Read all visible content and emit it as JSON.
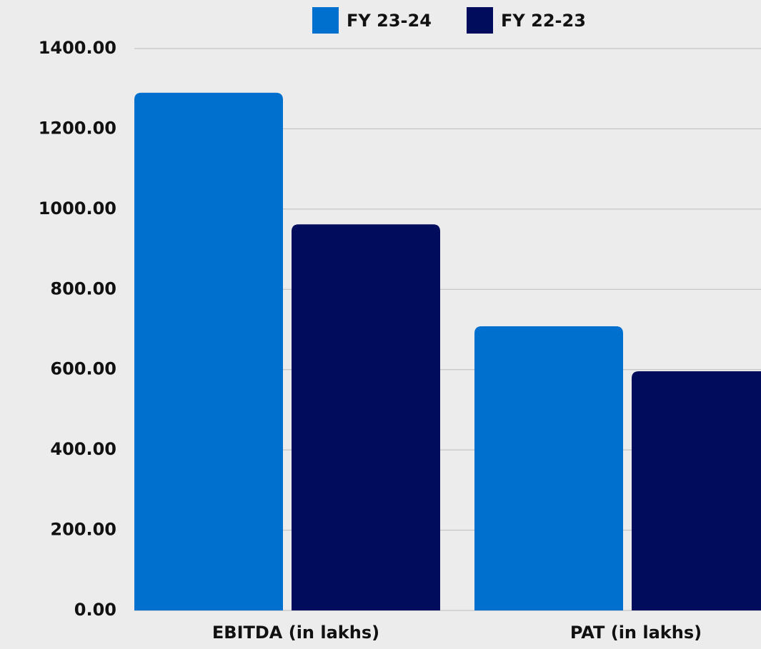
{
  "chart_data": {
    "type": "bar",
    "categories": [
      "EBITDA (in lakhs)",
      "PAT (in lakhs)"
    ],
    "series": [
      {
        "name": "FY 23-24",
        "color": "#0070cf",
        "values": [
          1290,
          708
        ]
      },
      {
        "name": "FY 22-23",
        "color": "#020c5c",
        "values": [
          962,
          596
        ]
      }
    ],
    "ylim": [
      0,
      1400
    ],
    "yticks": [
      {
        "value": 0,
        "label": "0.00"
      },
      {
        "value": 200,
        "label": "200.00"
      },
      {
        "value": 400,
        "label": "400.00"
      },
      {
        "value": 600,
        "label": "600.00"
      },
      {
        "value": 800,
        "label": "800.00"
      },
      {
        "value": 1000,
        "label": "1000.00"
      },
      {
        "value": 1200,
        "label": "1200.00"
      },
      {
        "value": 1400,
        "label": "1400.00"
      }
    ],
    "grid": true,
    "legend": "top"
  }
}
